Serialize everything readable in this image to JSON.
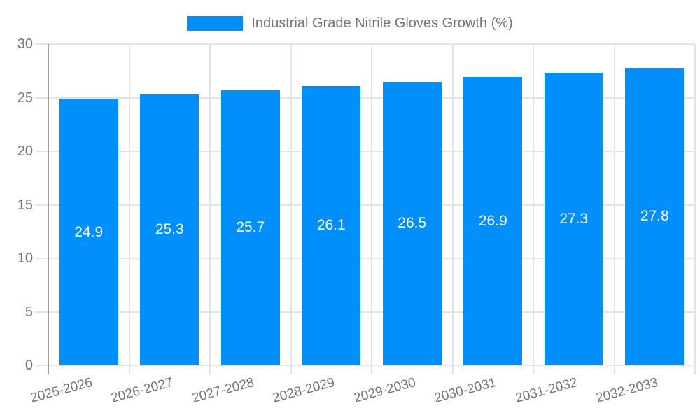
{
  "chart_data": {
    "type": "bar",
    "title": "Industrial Grade Nitrile Gloves Growth (%)",
    "categories": [
      "2025-2026",
      "2026-2027",
      "2027-2028",
      "2028-2029",
      "2029-2030",
      "2030-2031",
      "2031-2032",
      "2032-2033"
    ],
    "series": [
      {
        "name": "Industrial Grade Nitrile Gloves Growth (%)",
        "values": [
          24.9,
          25.3,
          25.7,
          26.1,
          26.5,
          26.9,
          27.3,
          27.8
        ]
      }
    ],
    "value_labels": [
      "24.9",
      "25.3",
      "25.7",
      "26.1",
      "26.5",
      "26.9",
      "27.3",
      "27.8"
    ],
    "xlabel": "",
    "ylabel": "",
    "ylim": [
      0,
      30
    ],
    "yticks": [
      0,
      5,
      10,
      15,
      20,
      25,
      30
    ],
    "grid": true,
    "legend_position": "top-center",
    "value_labels_inside_bars": true,
    "x_label_rotation_deg": -15
  },
  "legend": {
    "label": "Industrial Grade Nitrile Gloves Growth (%)"
  },
  "colors": {
    "bar": "#008FFB",
    "axis_text": "#757575",
    "gridline": "#e4e4e4",
    "axis_line": "#9e9e9e",
    "value_label": "#ffffff",
    "background": "#ffffff"
  }
}
